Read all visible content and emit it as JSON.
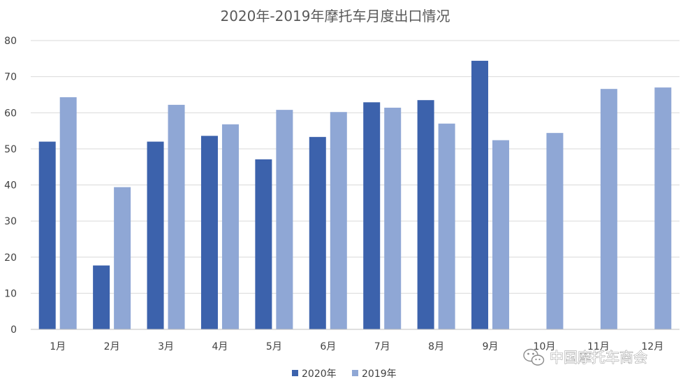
{
  "chart_data": {
    "type": "bar",
    "title": "2020年-2019年摩托车月度出口情况",
    "categories": [
      "1月",
      "2月",
      "3月",
      "4月",
      "5月",
      "6月",
      "7月",
      "8月",
      "9月",
      "10月",
      "11月",
      "12月"
    ],
    "series": [
      {
        "name": "2020年",
        "color": "#3c62ac",
        "values": [
          52,
          17.7,
          52,
          53.6,
          47.1,
          53.3,
          62.9,
          63.5,
          74.4,
          null,
          null,
          null
        ]
      },
      {
        "name": "2019年",
        "color": "#8fa7d5",
        "values": [
          64.3,
          39.4,
          62.2,
          56.8,
          60.8,
          60.2,
          61.4,
          57,
          52.4,
          54.4,
          66.6,
          67
        ]
      }
    ],
    "ylim": [
      0,
      80
    ],
    "yticks": [
      0,
      10,
      20,
      30,
      40,
      50,
      60,
      70,
      80
    ],
    "xlabel": "",
    "ylabel": "",
    "grid": true,
    "legend_position": "bottom"
  },
  "watermark": {
    "text": "中国摩托车商会",
    "icon": "wechat-icon"
  }
}
